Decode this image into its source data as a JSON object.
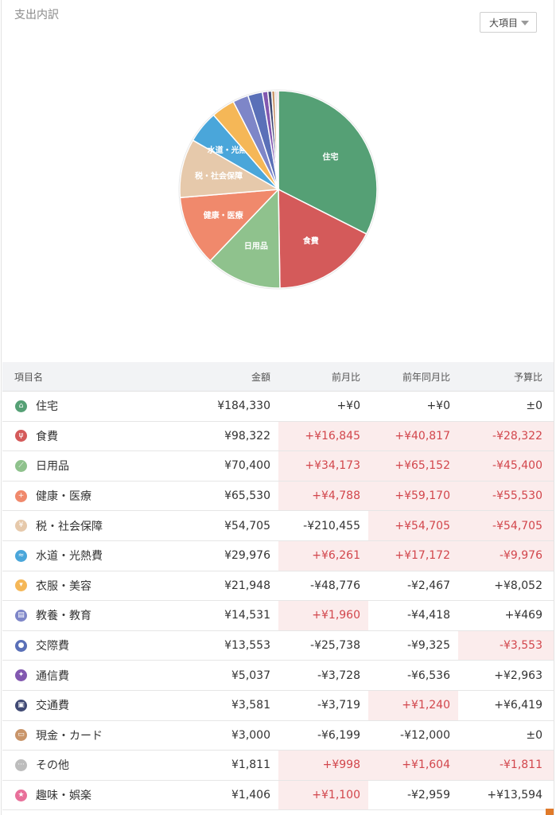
{
  "header": {
    "title": "支出内訳",
    "dropdown_label": "大項目"
  },
  "chart_data": {
    "type": "pie",
    "categories": [
      "住宅",
      "食費",
      "日用品",
      "健康・医療",
      "税・社会保障",
      "水道・光熱費",
      "衣服・美容",
      "教養・教育",
      "交際費",
      "通信費",
      "交通費",
      "現金・カード",
      "その他",
      "趣味・娯楽"
    ],
    "values": [
      184330,
      98322,
      70400,
      65530,
      54705,
      29976,
      21948,
      14531,
      13553,
      5037,
      3581,
      3000,
      1811,
      1406
    ],
    "colors": [
      "#55a075",
      "#d45a5a",
      "#8fc28d",
      "#f0896c",
      "#e6c9ab",
      "#4aa6da",
      "#f5b757",
      "#7e86c8",
      "#5a70b8",
      "#8258b0",
      "#404a74",
      "#c9956a",
      "#bdbdbd",
      "#e8709a"
    ],
    "labels": [
      "住宅",
      "食費",
      "日用品",
      "健康・医療",
      "税・社会保障",
      "水道・光熱費",
      "",
      "",
      "",
      "",
      "",
      "",
      "",
      ""
    ]
  },
  "table": {
    "headers": [
      "項目名",
      "金額",
      "前月比",
      "前年同月比",
      "予算比"
    ],
    "rows": [
      {
        "icon": "house-icon",
        "glyph": "⌂",
        "color": "#55a075",
        "name": "住宅",
        "amount": "¥184,330",
        "mom": "+¥0",
        "yoy": "+¥0",
        "budget": "±0",
        "mom_neg": false,
        "yoy_neg": false,
        "budget_neg": false
      },
      {
        "icon": "fork-knife-icon",
        "glyph": "ψ",
        "color": "#d45a5a",
        "name": "食費",
        "amount": "¥98,322",
        "mom": "+¥16,845",
        "yoy": "+¥40,817",
        "budget": "-¥28,322",
        "mom_neg": true,
        "yoy_neg": true,
        "budget_neg": true
      },
      {
        "icon": "daily-goods-icon",
        "glyph": "⟋",
        "color": "#8fc28d",
        "name": "日用品",
        "amount": "¥70,400",
        "mom": "+¥34,173",
        "yoy": "+¥65,152",
        "budget": "-¥45,400",
        "mom_neg": true,
        "yoy_neg": true,
        "budget_neg": true
      },
      {
        "icon": "medical-cross-icon",
        "glyph": "+",
        "color": "#f0896c",
        "name": "健康・医療",
        "amount": "¥65,530",
        "mom": "+¥4,788",
        "yoy": "+¥59,170",
        "budget": "-¥55,530",
        "mom_neg": true,
        "yoy_neg": true,
        "budget_neg": true
      },
      {
        "icon": "tax-icon",
        "glyph": "¥",
        "color": "#e6c9ab",
        "name": "税・社会保障",
        "amount": "¥54,705",
        "mom": "-¥210,455",
        "yoy": "+¥54,705",
        "budget": "-¥54,705",
        "mom_neg": false,
        "yoy_neg": true,
        "budget_neg": true
      },
      {
        "icon": "water-tap-icon",
        "glyph": "≈",
        "color": "#4aa6da",
        "name": "水道・光熱費",
        "amount": "¥29,976",
        "mom": "+¥6,261",
        "yoy": "+¥17,172",
        "budget": "-¥9,976",
        "mom_neg": true,
        "yoy_neg": true,
        "budget_neg": true
      },
      {
        "icon": "shirt-icon",
        "glyph": "▾",
        "color": "#f5b757",
        "name": "衣服・美容",
        "amount": "¥21,948",
        "mom": "-¥48,776",
        "yoy": "-¥2,467",
        "budget": "+¥8,052",
        "mom_neg": false,
        "yoy_neg": false,
        "budget_neg": false
      },
      {
        "icon": "book-icon",
        "glyph": "▤",
        "color": "#7e86c8",
        "name": "教養・教育",
        "amount": "¥14,531",
        "mom": "+¥1,960",
        "yoy": "-¥4,418",
        "budget": "+¥469",
        "mom_neg": true,
        "yoy_neg": false,
        "budget_neg": false
      },
      {
        "icon": "people-icon",
        "glyph": "●",
        "color": "#5a70b8",
        "name": "交際費",
        "amount": "¥13,553",
        "mom": "-¥25,738",
        "yoy": "-¥9,325",
        "budget": "-¥3,553",
        "mom_neg": false,
        "yoy_neg": false,
        "budget_neg": true
      },
      {
        "icon": "antenna-icon",
        "glyph": "✦",
        "color": "#8258b0",
        "name": "通信費",
        "amount": "¥5,037",
        "mom": "-¥3,728",
        "yoy": "-¥6,536",
        "budget": "+¥2,963",
        "mom_neg": false,
        "yoy_neg": false,
        "budget_neg": false
      },
      {
        "icon": "train-icon",
        "glyph": "▣",
        "color": "#404a74",
        "name": "交通費",
        "amount": "¥3,581",
        "mom": "-¥3,719",
        "yoy": "+¥1,240",
        "budget": "+¥6,419",
        "mom_neg": false,
        "yoy_neg": true,
        "budget_neg": false
      },
      {
        "icon": "wallet-icon",
        "glyph": "▭",
        "color": "#c9956a",
        "name": "現金・カード",
        "amount": "¥3,000",
        "mom": "-¥6,199",
        "yoy": "-¥12,000",
        "budget": "±0",
        "mom_neg": false,
        "yoy_neg": false,
        "budget_neg": false
      },
      {
        "icon": "more-dots-icon",
        "glyph": "···",
        "color": "#bdbdbd",
        "name": "その他",
        "amount": "¥1,811",
        "mom": "+¥998",
        "yoy": "+¥1,604",
        "budget": "-¥1,811",
        "mom_neg": true,
        "yoy_neg": true,
        "budget_neg": true
      },
      {
        "icon": "star-icon",
        "glyph": "★",
        "color": "#e8709a",
        "name": "趣味・娯楽",
        "amount": "¥1,406",
        "mom": "+¥1,100",
        "yoy": "-¥2,959",
        "budget": "+¥13,594",
        "mom_neg": true,
        "yoy_neg": false,
        "budget_neg": false
      }
    ]
  }
}
